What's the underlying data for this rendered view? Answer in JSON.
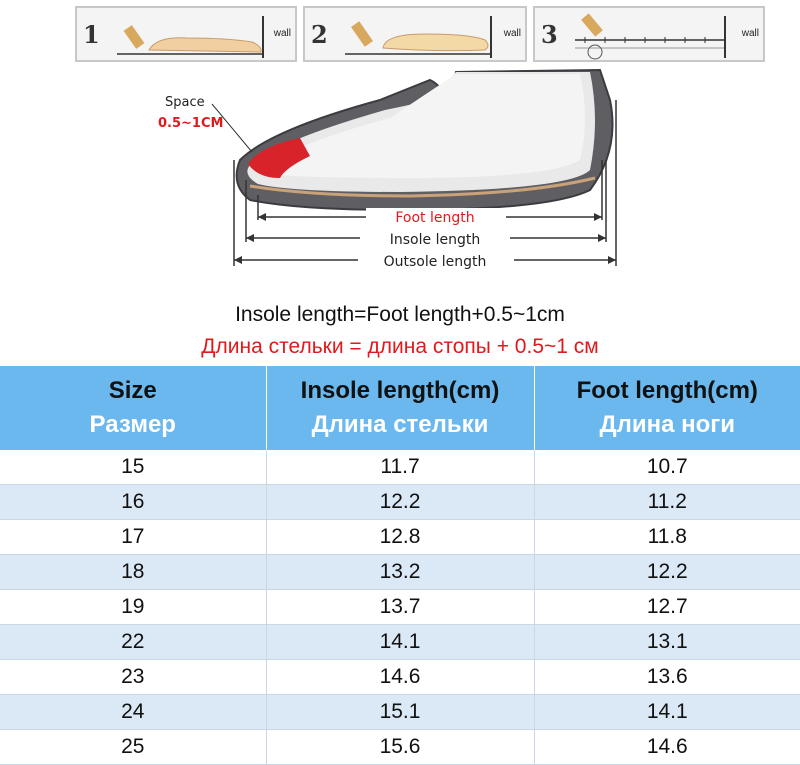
{
  "steps": [
    {
      "number": "1",
      "wall": "wall"
    },
    {
      "number": "2",
      "wall": "wall"
    },
    {
      "number": "3",
      "wall": "wall"
    }
  ],
  "diagram": {
    "space_label": "Space",
    "space_value": "0.5~1CM",
    "foot_length": "Foot length",
    "insole_length": "Insole length",
    "outsole_length": "Outsole length"
  },
  "formula": {
    "en": "Insole length=Foot length+0.5~1cm",
    "ru": "Длина стельки = длина стопы + 0.5~1 см"
  },
  "table": {
    "headers": [
      {
        "en": "Size",
        "ru": "Размер"
      },
      {
        "en": "Insole length(cm)",
        "ru": "Длина стельки"
      },
      {
        "en": "Foot length(cm)",
        "ru": "Длина ноги"
      }
    ],
    "rows": [
      [
        "15",
        "11.7",
        "10.7"
      ],
      [
        "16",
        "12.2",
        "11.2"
      ],
      [
        "17",
        "12.8",
        "11.8"
      ],
      [
        "18",
        "13.2",
        "12.2"
      ],
      [
        "19",
        "13.7",
        "12.7"
      ],
      [
        "22",
        "14.1",
        "13.1"
      ],
      [
        "23",
        "14.6",
        "13.6"
      ],
      [
        "24",
        "15.1",
        "14.1"
      ],
      [
        "25",
        "15.6",
        "14.6"
      ]
    ]
  },
  "colors": {
    "header_bg": "#6ab8ee",
    "alt_row_bg": "#dbe8f6",
    "accent_red": "#e2191b"
  }
}
